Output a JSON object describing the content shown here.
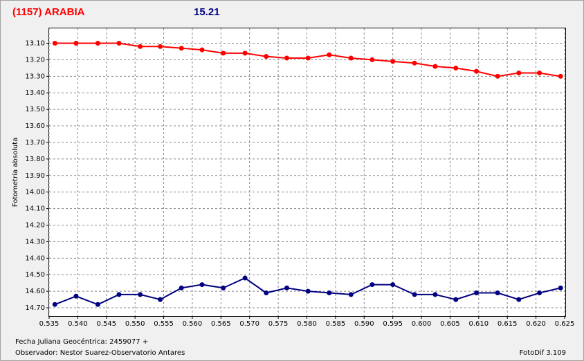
{
  "chart_data": {
    "type": "line",
    "title": "(1157) ARABIA",
    "annotation": "15.21",
    "y_label": "Fotometría absoluta",
    "x_label": "Fecha Juliana Geocéntrica: 2459077 +",
    "observer": "Observador: Nestor Suarez-Observatorio Antares",
    "software": "FotoDif 3.109",
    "x": [
      0.536,
      0.5397,
      0.5435,
      0.5472,
      0.5509,
      0.5544,
      0.5581,
      0.5617,
      0.5654,
      0.5692,
      0.5729,
      0.5765,
      0.5802,
      0.5839,
      0.5877,
      0.5914,
      0.595,
      0.5988,
      0.6024,
      0.606,
      0.6096,
      0.6133,
      0.617,
      0.6206,
      0.6243
    ],
    "series": [
      {
        "color": "#ff0000",
        "values": [
          13.1,
          13.1,
          13.1,
          13.1,
          13.12,
          13.12,
          13.13,
          13.14,
          13.16,
          13.16,
          13.18,
          13.19,
          13.19,
          13.17,
          13.19,
          13.2,
          13.21,
          13.22,
          13.24,
          13.25,
          13.27,
          13.3,
          13.28,
          13.28,
          13.3
        ]
      },
      {
        "color": "#000080",
        "values": [
          14.68,
          14.63,
          14.68,
          14.62,
          14.62,
          14.65,
          14.58,
          14.56,
          14.58,
          14.52,
          14.61,
          14.58,
          14.6,
          14.61,
          14.62,
          14.56,
          14.56,
          14.62,
          14.62,
          14.65,
          14.61,
          14.61,
          14.65,
          14.61,
          14.58
        ]
      }
    ],
    "xlim": [
      0.535,
      0.625
    ],
    "xticks": [
      0.535,
      {
        "value": 0.54,
        "label": "0.540"
      },
      0.545,
      {
        "value": 0.55,
        "label": "0.550"
      },
      0.555,
      {
        "value": 0.56,
        "label": "0.560"
      },
      0.565,
      {
        "value": 0.57,
        "label": "0.570"
      },
      0.575,
      {
        "value": 0.58,
        "label": "0.580"
      },
      0.585,
      {
        "value": 0.59,
        "label": "0.590"
      },
      0.595,
      {
        "value": 0.6,
        "label": "0.600"
      },
      0.605,
      {
        "value": 0.61,
        "label": "0.610"
      },
      0.615,
      {
        "value": 0.62,
        "label": "0.620"
      },
      0.625
    ],
    "ylim": [
      14.75,
      13.01
    ],
    "yticks": [
      {
        "value": 13.1,
        "label": "13.10"
      },
      {
        "value": 13.2,
        "label": "13.20"
      },
      {
        "value": 13.3,
        "label": "13.30"
      },
      {
        "value": 13.4,
        "label": "13.40"
      },
      {
        "value": 13.5,
        "label": "13.50"
      },
      {
        "value": 13.6,
        "label": "13.60"
      },
      {
        "value": 13.7,
        "label": "13.70"
      },
      {
        "value": 13.8,
        "label": "13.80"
      },
      {
        "value": 13.9,
        "label": "13.90"
      },
      {
        "value": 14.0,
        "label": "14.00"
      },
      {
        "value": 14.1,
        "label": "14.10"
      },
      {
        "value": 14.2,
        "label": "14.20"
      },
      {
        "value": 14.3,
        "label": "14.30"
      },
      {
        "value": 14.4,
        "label": "14.40"
      },
      {
        "value": 14.5,
        "label": "14.50"
      },
      {
        "value": 14.6,
        "label": "14.60"
      },
      {
        "value": 14.7,
        "label": "14.70"
      }
    ],
    "grid": true
  }
}
